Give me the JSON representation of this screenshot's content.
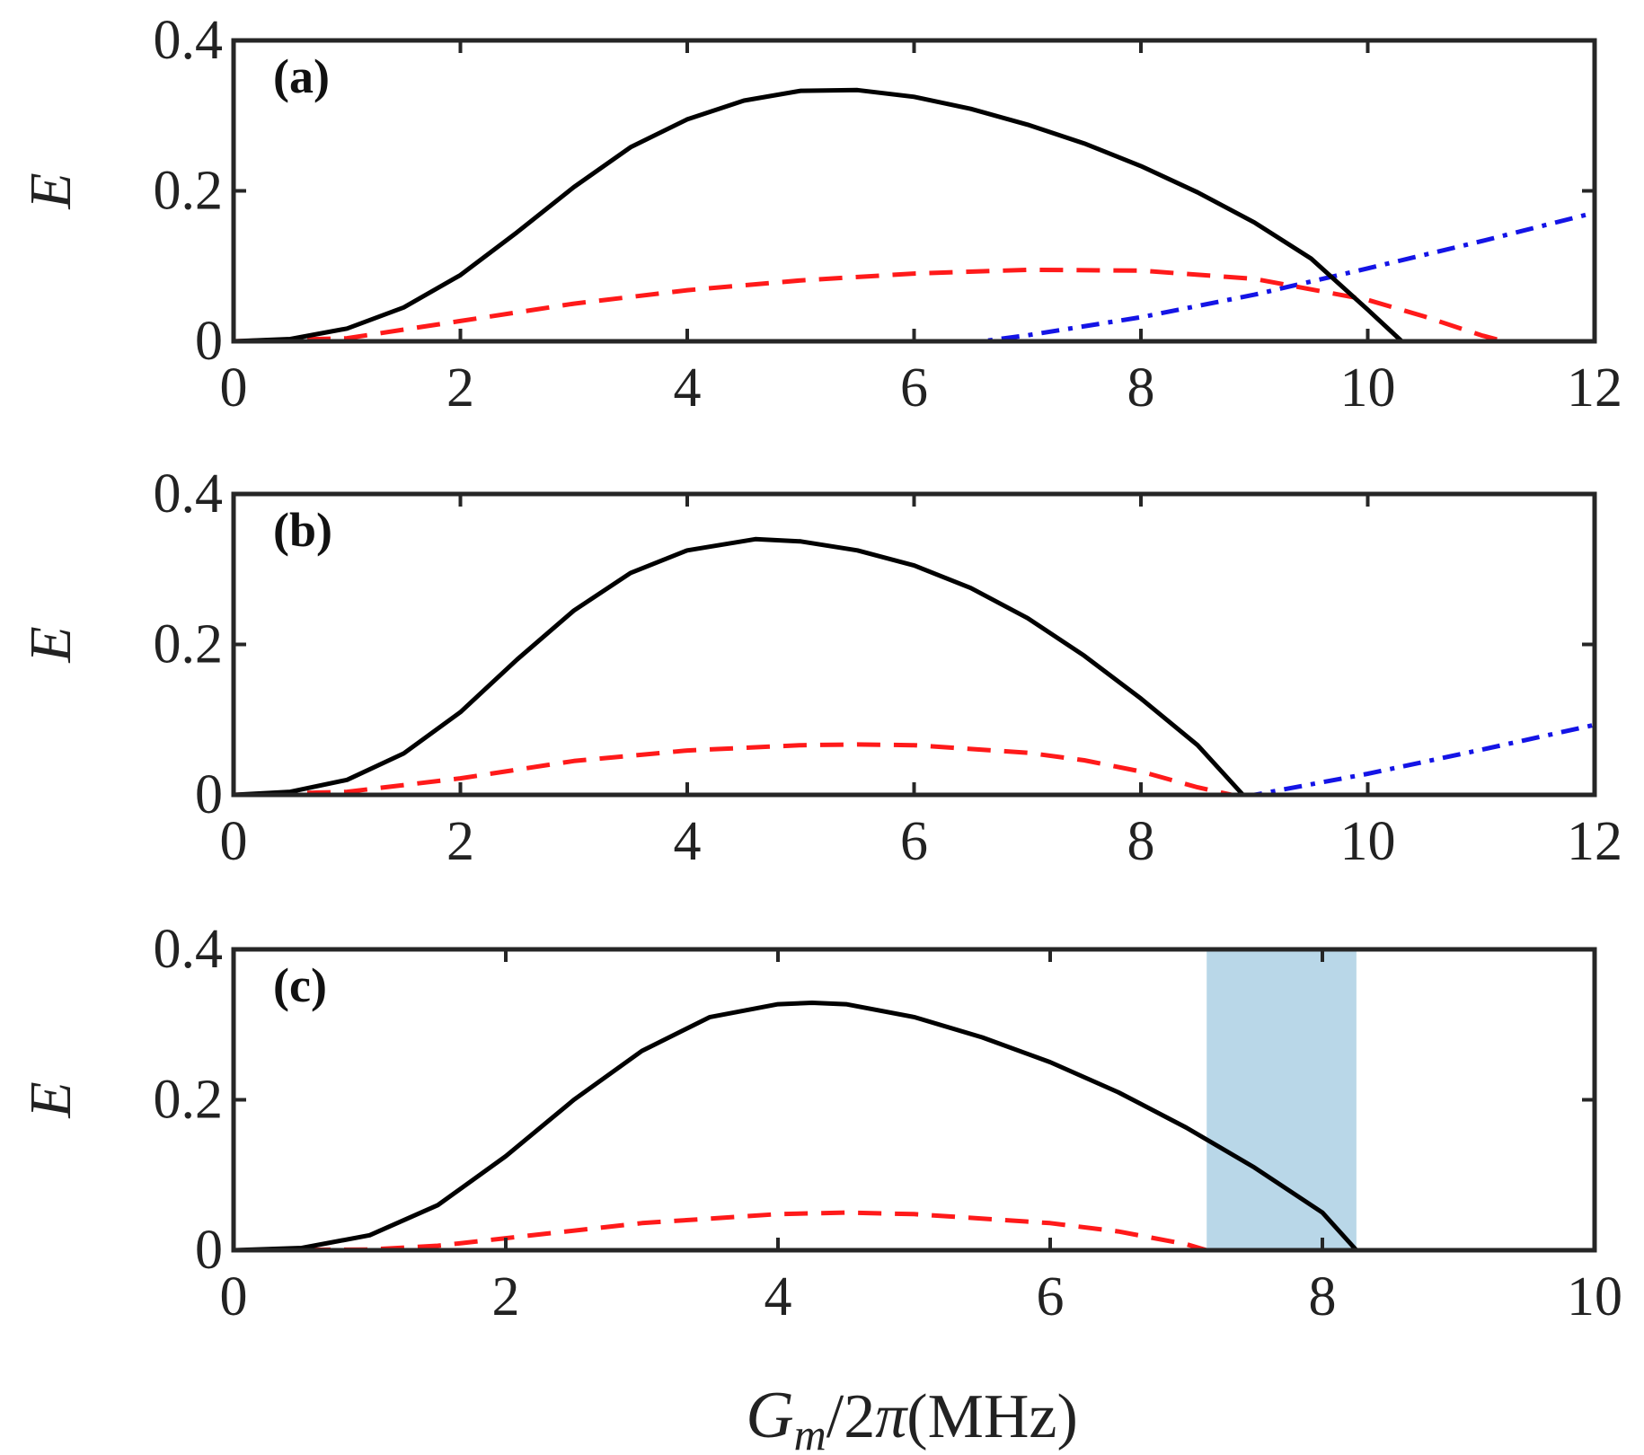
{
  "chart_data": [
    {
      "type": "line",
      "panel_label": "(a)",
      "ylabel": "E",
      "xlim": [
        0,
        12
      ],
      "ylim": [
        0,
        0.4
      ],
      "xticks": [
        "0",
        "2",
        "4",
        "6",
        "8",
        "10",
        "12"
      ],
      "yticks": [
        "0",
        "0.2",
        "0.4"
      ],
      "series": [
        {
          "name": "black-solid",
          "color": "#000000",
          "style": "solid",
          "x": [
            0,
            0.5,
            1,
            1.5,
            2,
            2.5,
            3,
            3.5,
            4,
            4.5,
            5,
            5.5,
            6,
            6.5,
            7,
            7.5,
            8,
            8.5,
            9,
            9.5,
            10,
            10.3,
            11,
            12
          ],
          "y": [
            0,
            0.003,
            0.017,
            0.045,
            0.088,
            0.145,
            0.205,
            0.258,
            0.295,
            0.32,
            0.333,
            0.334,
            0.325,
            0.309,
            0.288,
            0.263,
            0.233,
            0.198,
            0.158,
            0.11,
            0.042,
            0,
            0,
            0
          ]
        },
        {
          "name": "red-dashed",
          "color": "#ff1a1a",
          "style": "dashed",
          "x": [
            0,
            1,
            2,
            3,
            4,
            5,
            6,
            7,
            8,
            9,
            10,
            10.5,
            11,
            11.2,
            12
          ],
          "y": [
            0,
            0.004,
            0.027,
            0.05,
            0.068,
            0.081,
            0.09,
            0.095,
            0.094,
            0.083,
            0.055,
            0.033,
            0.008,
            0,
            0
          ]
        },
        {
          "name": "blue-dashdot",
          "color": "#1414e6",
          "style": "dashdot",
          "x": [
            0,
            6.6,
            7,
            8,
            9,
            10,
            11,
            12
          ],
          "y": [
            0,
            0,
            0.008,
            0.032,
            0.062,
            0.097,
            0.133,
            0.171
          ]
        }
      ]
    },
    {
      "type": "line",
      "panel_label": "(b)",
      "ylabel": "E",
      "xlim": [
        0,
        12
      ],
      "ylim": [
        0,
        0.4
      ],
      "xticks": [
        "0",
        "2",
        "4",
        "6",
        "8",
        "10",
        "12"
      ],
      "yticks": [
        "0",
        "0.2",
        "0.4"
      ],
      "series": [
        {
          "name": "black-solid",
          "color": "#000000",
          "style": "solid",
          "x": [
            0,
            0.5,
            1,
            1.5,
            2,
            2.5,
            3,
            3.5,
            4,
            4.6,
            5,
            5.5,
            6,
            6.5,
            7,
            7.5,
            8,
            8.5,
            8.9,
            12
          ],
          "y": [
            0,
            0.004,
            0.02,
            0.055,
            0.11,
            0.18,
            0.245,
            0.295,
            0.325,
            0.34,
            0.337,
            0.325,
            0.305,
            0.275,
            0.235,
            0.185,
            0.128,
            0.066,
            0,
            0
          ]
        },
        {
          "name": "red-dashed",
          "color": "#ff1a1a",
          "style": "dashed",
          "x": [
            0,
            1,
            2,
            3,
            4,
            5,
            5.5,
            6,
            7,
            7.5,
            8,
            8.5,
            8.8,
            12
          ],
          "y": [
            0,
            0.004,
            0.022,
            0.045,
            0.059,
            0.066,
            0.067,
            0.066,
            0.056,
            0.046,
            0.031,
            0.01,
            0,
            0
          ]
        },
        {
          "name": "blue-dashdot",
          "color": "#1414e6",
          "style": "dashdot",
          "x": [
            0,
            9,
            10,
            11,
            12
          ],
          "y": [
            0,
            0,
            0.028,
            0.06,
            0.093
          ]
        }
      ]
    },
    {
      "type": "line",
      "panel_label": "(c)",
      "ylabel": "E",
      "xlabel_parts": [
        "G",
        "m",
        "/2",
        "π",
        "(MHz)"
      ],
      "xlim": [
        0,
        10
      ],
      "ylim": [
        0,
        0.4
      ],
      "xticks": [
        "0",
        "2",
        "4",
        "6",
        "8",
        "10"
      ],
      "yticks": [
        "0",
        "0.2",
        "0.4"
      ],
      "shaded_band": {
        "x_from": 7.15,
        "x_to": 8.25,
        "color": "#b9d7e8"
      },
      "series": [
        {
          "name": "black-solid",
          "color": "#000000",
          "style": "solid",
          "x": [
            0,
            0.5,
            1,
            1.5,
            2,
            2.5,
            3,
            3.5,
            4,
            4.25,
            4.5,
            5,
            5.5,
            6,
            6.5,
            7,
            7.5,
            8,
            8.25,
            10
          ],
          "y": [
            0,
            0.003,
            0.02,
            0.06,
            0.125,
            0.2,
            0.265,
            0.31,
            0.327,
            0.329,
            0.327,
            0.31,
            0.283,
            0.25,
            0.21,
            0.163,
            0.11,
            0.05,
            0,
            0
          ]
        },
        {
          "name": "red-dashed",
          "color": "#ff1a1a",
          "style": "dashed",
          "x": [
            0,
            1,
            1.5,
            2,
            3,
            4,
            4.5,
            5,
            6,
            6.5,
            7,
            7.15,
            10
          ],
          "y": [
            0,
            0.001,
            0.006,
            0.016,
            0.036,
            0.048,
            0.05,
            0.048,
            0.036,
            0.025,
            0.008,
            0,
            0
          ]
        }
      ]
    }
  ]
}
